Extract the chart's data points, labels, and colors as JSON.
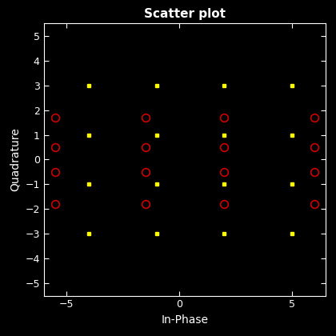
{
  "title": "Scatter plot",
  "xlabel": "In-Phase",
  "ylabel": "Quadrature",
  "xlim": [
    -6.0,
    6.5
  ],
  "ylim": [
    -5.5,
    5.5
  ],
  "xticks": [
    -5,
    0,
    5
  ],
  "yticks": [
    -5,
    -4,
    -3,
    -2,
    -1,
    0,
    1,
    2,
    3,
    4,
    5
  ],
  "background_color": "#000000",
  "text_color": "#ffffff",
  "yellow_squares": {
    "x": [
      -4,
      -1,
      2,
      5,
      -4,
      -1,
      2,
      5,
      -4,
      -1,
      2,
      5,
      -4,
      -1,
      2,
      5
    ],
    "y": [
      3,
      3,
      3,
      3,
      1,
      1,
      1,
      1,
      -1,
      -1,
      -1,
      -1,
      -3,
      -3,
      -3,
      -3
    ],
    "color": "#ffff00",
    "marker": "s",
    "markersize": 3
  },
  "red_circles": {
    "x": [
      -5.5,
      -5.5,
      -5.5,
      -5.5,
      -1.5,
      -1.5,
      -1.5,
      -1.5,
      2.0,
      2.0,
      2.0,
      2.0,
      6.0,
      6.0,
      6.0,
      6.0
    ],
    "y": [
      1.7,
      0.5,
      -0.5,
      -1.8,
      1.7,
      0.5,
      -0.5,
      -1.8,
      1.7,
      0.5,
      -0.5,
      -1.8,
      1.7,
      0.5,
      -0.5,
      -1.8
    ],
    "color": "#cc0000",
    "marker": "o",
    "markersize": 7,
    "linewidth": 1.2
  }
}
